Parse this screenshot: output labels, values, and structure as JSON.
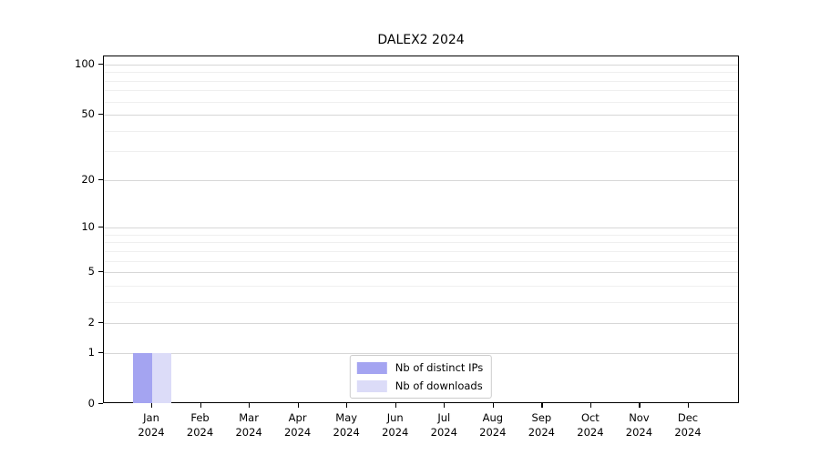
{
  "window": {
    "background": "#ffffff"
  },
  "chart_data": {
    "type": "bar",
    "title": "DALEX2 2024",
    "categories": [
      {
        "month": "Jan",
        "year": "2024"
      },
      {
        "month": "Feb",
        "year": "2024"
      },
      {
        "month": "Mar",
        "year": "2024"
      },
      {
        "month": "Apr",
        "year": "2024"
      },
      {
        "month": "May",
        "year": "2024"
      },
      {
        "month": "Jun",
        "year": "2024"
      },
      {
        "month": "Jul",
        "year": "2024"
      },
      {
        "month": "Aug",
        "year": "2024"
      },
      {
        "month": "Sep",
        "year": "2024"
      },
      {
        "month": "Oct",
        "year": "2024"
      },
      {
        "month": "Nov",
        "year": "2024"
      },
      {
        "month": "Dec",
        "year": "2024"
      }
    ],
    "series": [
      {
        "name": "Nb of distinct IPs",
        "color": "#a4a4f1",
        "values": [
          1,
          0,
          0,
          0,
          0,
          0,
          0,
          0,
          0,
          0,
          0,
          0
        ]
      },
      {
        "name": "Nb of downloads",
        "color": "#dcdcf8",
        "values": [
          1,
          0,
          0,
          0,
          0,
          0,
          0,
          0,
          0,
          0,
          0,
          0
        ]
      }
    ],
    "yscale": "log1p",
    "ylim": [
      0,
      112
    ],
    "y_major_ticks": [
      0,
      1,
      2,
      5,
      10,
      20,
      50,
      100
    ],
    "y_minor_ticks": [
      3,
      4,
      6,
      7,
      8,
      9,
      30,
      40,
      60,
      70,
      80,
      90
    ],
    "grid": "horizontal",
    "grid_major_color": "#d7d7d7",
    "grid_minor_color": "#efefef",
    "axis_color": "#000000",
    "legend_position": "lower center"
  }
}
